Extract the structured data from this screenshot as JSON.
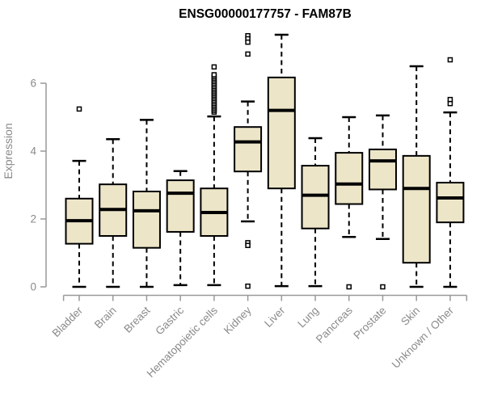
{
  "chart_data": {
    "type": "boxplot",
    "title": "ENSG00000177757 - FAM87B",
    "xlabel": "",
    "ylabel": "Expression",
    "yticks": [
      0,
      2,
      4,
      6
    ],
    "ylim": [
      0,
      7.5
    ],
    "grid": false,
    "categories": [
      "Bladder",
      "Brain",
      "Breast",
      "Gastric",
      "Hematopoietic cells",
      "Kidney",
      "Liver",
      "Lung",
      "Pancreas",
      "Prostate",
      "Skin",
      "Unknown / Other"
    ],
    "boxes": [
      {
        "category": "Bladder",
        "whisker_low": 0.0,
        "q1": 1.27,
        "median": 1.95,
        "q3": 2.6,
        "whisker_high": 3.71,
        "outliers": [
          5.24
        ]
      },
      {
        "category": "Brain",
        "whisker_low": 0.0,
        "q1": 1.5,
        "median": 2.28,
        "q3": 3.02,
        "whisker_high": 4.35,
        "outliers": []
      },
      {
        "category": "Breast",
        "whisker_low": 0.0,
        "q1": 1.15,
        "median": 2.24,
        "q3": 2.81,
        "whisker_high": 4.92,
        "outliers": []
      },
      {
        "category": "Gastric",
        "whisker_low": 0.05,
        "q1": 1.62,
        "median": 2.76,
        "q3": 3.14,
        "whisker_high": 3.41,
        "outliers": []
      },
      {
        "category": "Hematopoietic cells",
        "whisker_low": 0.05,
        "q1": 1.5,
        "median": 2.19,
        "q3": 2.9,
        "whisker_high": 5.02,
        "outliers": [
          5.15,
          5.2,
          5.25,
          5.3,
          5.35,
          5.4,
          5.45,
          5.5,
          5.55,
          5.6,
          5.65,
          5.7,
          5.75,
          5.8,
          5.85,
          5.9,
          5.95,
          6.0,
          6.05,
          6.1,
          6.15,
          6.2,
          6.25,
          6.48
        ]
      },
      {
        "category": "Kidney",
        "whisker_low": 1.93,
        "q1": 3.4,
        "median": 4.27,
        "q3": 4.71,
        "whisker_high": 5.46,
        "outliers": [
          7.4,
          7.31,
          7.21,
          6.86,
          1.3,
          1.22,
          0.02
        ]
      },
      {
        "category": "Liver",
        "whisker_low": 0.02,
        "q1": 2.9,
        "median": 5.2,
        "q3": 6.17,
        "whisker_high": 7.43,
        "outliers": []
      },
      {
        "category": "Lung",
        "whisker_low": 0.02,
        "q1": 1.72,
        "median": 2.7,
        "q3": 3.57,
        "whisker_high": 4.38,
        "outliers": []
      },
      {
        "category": "Pancreas",
        "whisker_low": 1.47,
        "q1": 2.44,
        "median": 3.03,
        "q3": 3.95,
        "whisker_high": 5.0,
        "outliers": [
          0.0
        ]
      },
      {
        "category": "Prostate",
        "whisker_low": 1.41,
        "q1": 2.87,
        "median": 3.71,
        "q3": 4.05,
        "whisker_high": 5.05,
        "outliers": [
          0.0
        ]
      },
      {
        "category": "Skin",
        "whisker_low": 0.0,
        "q1": 0.71,
        "median": 2.9,
        "q3": 3.86,
        "whisker_high": 6.5,
        "outliers": []
      },
      {
        "category": "Unknown / Other",
        "whisker_low": 0.0,
        "q1": 1.9,
        "median": 2.62,
        "q3": 3.07,
        "whisker_high": 5.14,
        "outliers": [
          6.69,
          5.52,
          5.4
        ]
      }
    ],
    "colors": {
      "box_fill": "#ECE5C8",
      "box_border": "#000000",
      "median": "#000000",
      "whisker": "#000000",
      "outlier_border": "#000000",
      "outlier_fill": "#FFFFFF",
      "axis_line": "#999999",
      "tick_text": "#8A8A8A",
      "title_text": "#000000",
      "background": "#FFFFFF"
    }
  }
}
